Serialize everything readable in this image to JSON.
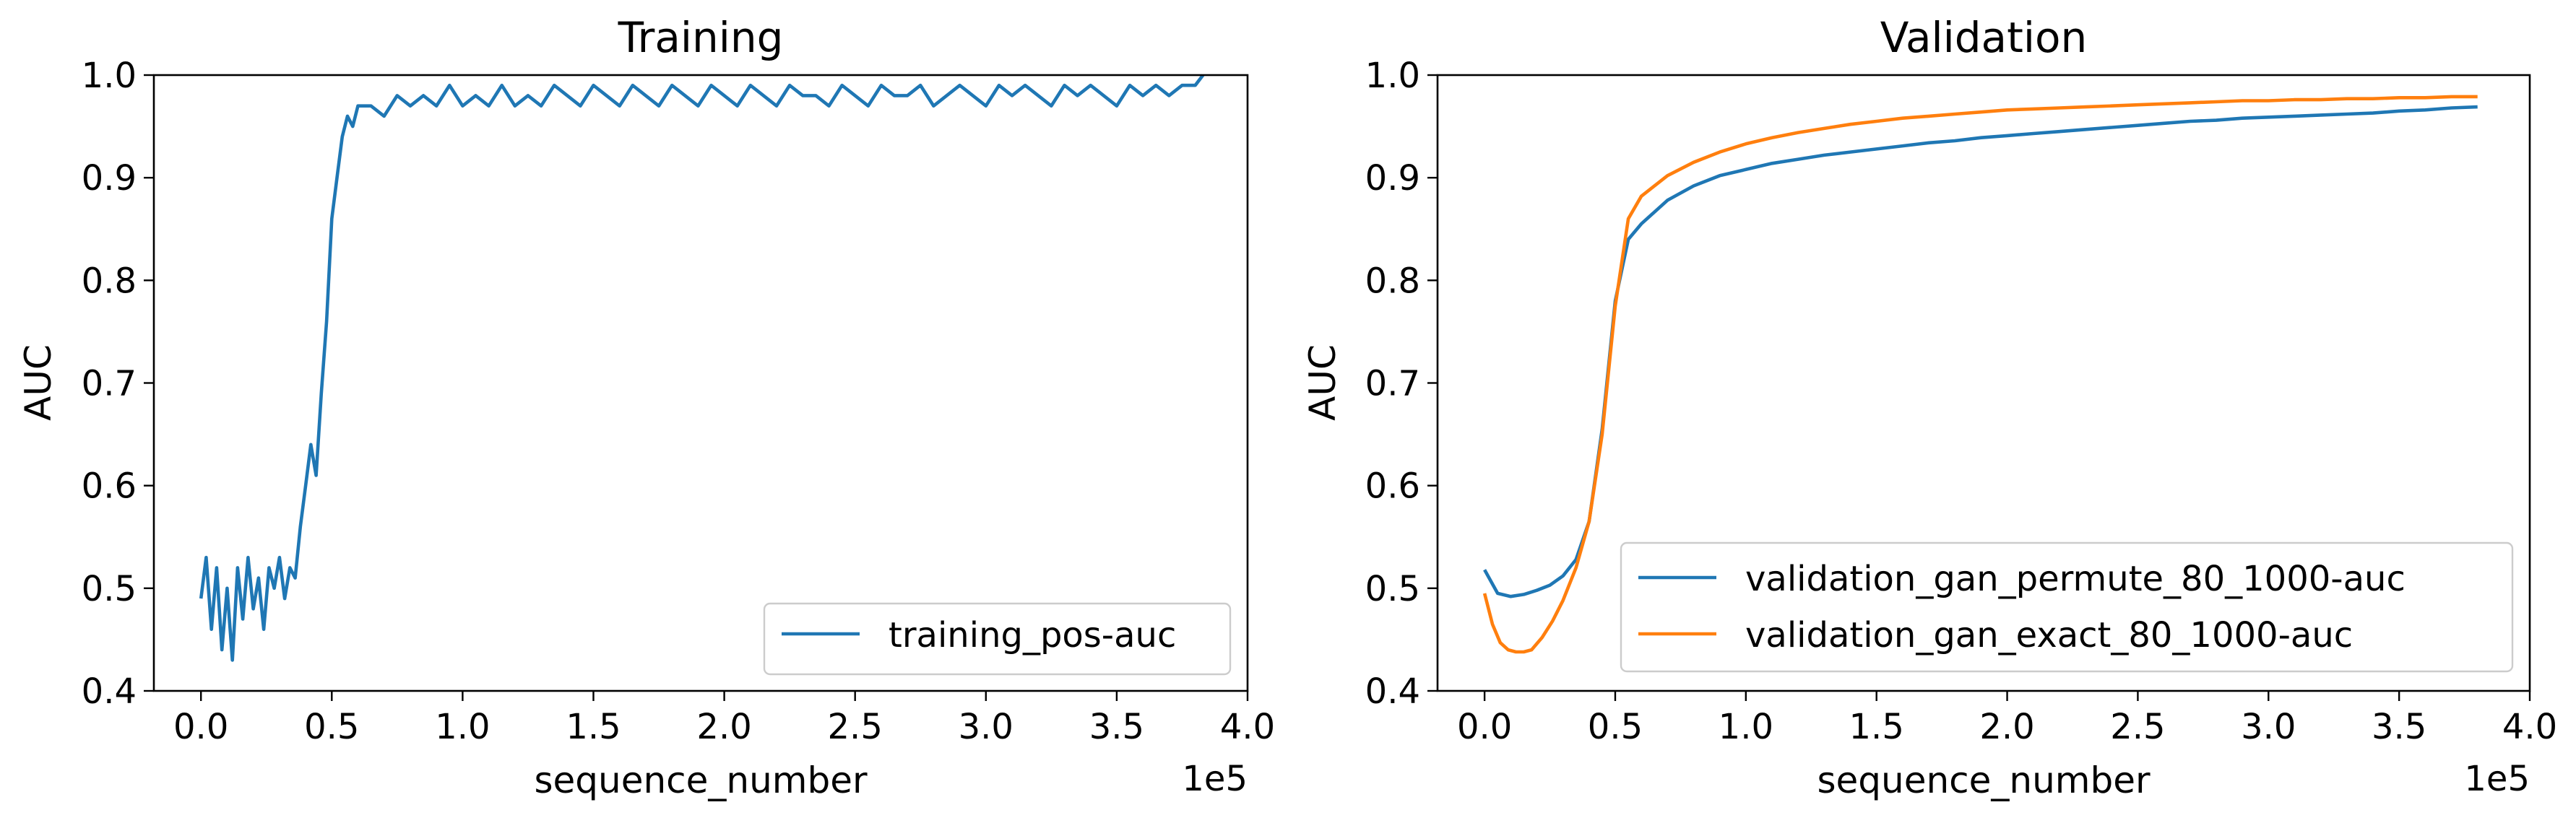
{
  "chart_data": [
    {
      "type": "line",
      "title": "Training",
      "xlabel": "sequence_number",
      "ylabel": "AUC",
      "x_offset_label": "1e5",
      "xlim": [
        -18000,
        400000
      ],
      "ylim": [
        0.4,
        1.0
      ],
      "xticks": [
        0,
        50000,
        100000,
        150000,
        200000,
        250000,
        300000,
        350000,
        400000
      ],
      "xtick_labels": [
        "0.0",
        "0.5",
        "1.0",
        "1.5",
        "2.0",
        "2.5",
        "3.0",
        "3.5",
        "4.0"
      ],
      "yticks": [
        0.4,
        0.5,
        0.6,
        0.7,
        0.8,
        0.9,
        1.0
      ],
      "ytick_labels": [
        "0.4",
        "0.5",
        "0.6",
        "0.7",
        "0.8",
        "0.9",
        "1.0"
      ],
      "grid": false,
      "legend_position": "lower-right",
      "series": [
        {
          "name": "training_pos-auc",
          "color": "#1f77b4",
          "x": [
            0,
            2000,
            4000,
            6000,
            8000,
            10000,
            12000,
            14000,
            16000,
            18000,
            20000,
            22000,
            24000,
            26000,
            28000,
            30000,
            32000,
            34000,
            36000,
            38000,
            40000,
            42000,
            44000,
            46000,
            48000,
            50000,
            52000,
            54000,
            56000,
            58000,
            60000,
            65000,
            70000,
            75000,
            80000,
            85000,
            90000,
            95000,
            100000,
            105000,
            110000,
            115000,
            120000,
            125000,
            130000,
            135000,
            140000,
            145000,
            150000,
            155000,
            160000,
            165000,
            170000,
            175000,
            180000,
            185000,
            190000,
            195000,
            200000,
            205000,
            210000,
            215000,
            220000,
            225000,
            230000,
            235000,
            240000,
            245000,
            250000,
            255000,
            260000,
            265000,
            270000,
            275000,
            280000,
            285000,
            290000,
            295000,
            300000,
            305000,
            310000,
            315000,
            320000,
            325000,
            330000,
            335000,
            340000,
            345000,
            350000,
            355000,
            360000,
            365000,
            370000,
            375000,
            380000,
            383000
          ],
          "values": [
            0.49,
            0.53,
            0.46,
            0.52,
            0.44,
            0.5,
            0.43,
            0.52,
            0.47,
            0.53,
            0.48,
            0.51,
            0.46,
            0.52,
            0.5,
            0.53,
            0.49,
            0.52,
            0.51,
            0.56,
            0.6,
            0.64,
            0.61,
            0.69,
            0.76,
            0.86,
            0.9,
            0.94,
            0.96,
            0.95,
            0.97,
            0.97,
            0.96,
            0.98,
            0.97,
            0.98,
            0.97,
            0.99,
            0.97,
            0.98,
            0.97,
            0.99,
            0.97,
            0.98,
            0.97,
            0.99,
            0.98,
            0.97,
            0.99,
            0.98,
            0.97,
            0.99,
            0.98,
            0.97,
            0.99,
            0.98,
            0.97,
            0.99,
            0.98,
            0.97,
            0.99,
            0.98,
            0.97,
            0.99,
            0.98,
            0.98,
            0.97,
            0.99,
            0.98,
            0.97,
            0.99,
            0.98,
            0.98,
            0.99,
            0.97,
            0.98,
            0.99,
            0.98,
            0.97,
            0.99,
            0.98,
            0.99,
            0.98,
            0.97,
            0.99,
            0.98,
            0.99,
            0.98,
            0.97,
            0.99,
            0.98,
            0.99,
            0.98,
            0.99,
            0.99,
            1.0
          ]
        }
      ]
    },
    {
      "type": "line",
      "title": "Validation",
      "xlabel": "sequence_number",
      "ylabel": "AUC",
      "x_offset_label": "1e5",
      "xlim": [
        -18000,
        400000
      ],
      "ylim": [
        0.4,
        1.0
      ],
      "xticks": [
        0,
        50000,
        100000,
        150000,
        200000,
        250000,
        300000,
        350000,
        400000
      ],
      "xtick_labels": [
        "0.0",
        "0.5",
        "1.0",
        "1.5",
        "2.0",
        "2.5",
        "3.0",
        "3.5",
        "4.0"
      ],
      "yticks": [
        0.4,
        0.5,
        0.6,
        0.7,
        0.8,
        0.9,
        1.0
      ],
      "ytick_labels": [
        "0.4",
        "0.5",
        "0.6",
        "0.7",
        "0.8",
        "0.9",
        "1.0"
      ],
      "grid": false,
      "legend_position": "lower-right",
      "series": [
        {
          "name": "validation_gan_permute_80_1000-auc",
          "color": "#1f77b4",
          "x": [
            0,
            5000,
            10000,
            15000,
            20000,
            25000,
            30000,
            35000,
            40000,
            45000,
            50000,
            55000,
            60000,
            70000,
            80000,
            90000,
            100000,
            110000,
            120000,
            130000,
            140000,
            150000,
            160000,
            170000,
            180000,
            190000,
            200000,
            210000,
            220000,
            230000,
            240000,
            250000,
            260000,
            270000,
            280000,
            290000,
            300000,
            310000,
            320000,
            330000,
            340000,
            350000,
            360000,
            370000,
            380000
          ],
          "values": [
            0.518,
            0.495,
            0.492,
            0.494,
            0.498,
            0.503,
            0.512,
            0.528,
            0.565,
            0.655,
            0.78,
            0.84,
            0.855,
            0.878,
            0.892,
            0.902,
            0.908,
            0.914,
            0.918,
            0.922,
            0.925,
            0.928,
            0.931,
            0.934,
            0.936,
            0.939,
            0.941,
            0.943,
            0.945,
            0.947,
            0.949,
            0.951,
            0.953,
            0.955,
            0.956,
            0.958,
            0.959,
            0.96,
            0.961,
            0.962,
            0.963,
            0.965,
            0.966,
            0.968,
            0.969
          ]
        },
        {
          "name": "validation_gan_exact_80_1000-auc",
          "color": "#ff7f0e",
          "x": [
            0,
            3000,
            6000,
            9000,
            12000,
            15000,
            18000,
            22000,
            26000,
            30000,
            35000,
            40000,
            45000,
            50000,
            55000,
            60000,
            70000,
            80000,
            90000,
            100000,
            110000,
            120000,
            130000,
            140000,
            150000,
            160000,
            170000,
            180000,
            190000,
            200000,
            210000,
            220000,
            230000,
            240000,
            250000,
            260000,
            270000,
            280000,
            290000,
            300000,
            310000,
            320000,
            330000,
            340000,
            350000,
            360000,
            370000,
            380000
          ],
          "values": [
            0.495,
            0.465,
            0.447,
            0.44,
            0.438,
            0.438,
            0.44,
            0.452,
            0.468,
            0.488,
            0.52,
            0.565,
            0.65,
            0.775,
            0.86,
            0.882,
            0.902,
            0.915,
            0.925,
            0.933,
            0.939,
            0.944,
            0.948,
            0.952,
            0.955,
            0.958,
            0.96,
            0.962,
            0.964,
            0.966,
            0.967,
            0.968,
            0.969,
            0.97,
            0.971,
            0.972,
            0.973,
            0.974,
            0.975,
            0.975,
            0.976,
            0.976,
            0.977,
            0.977,
            0.978,
            0.978,
            0.979,
            0.979
          ]
        }
      ]
    }
  ]
}
